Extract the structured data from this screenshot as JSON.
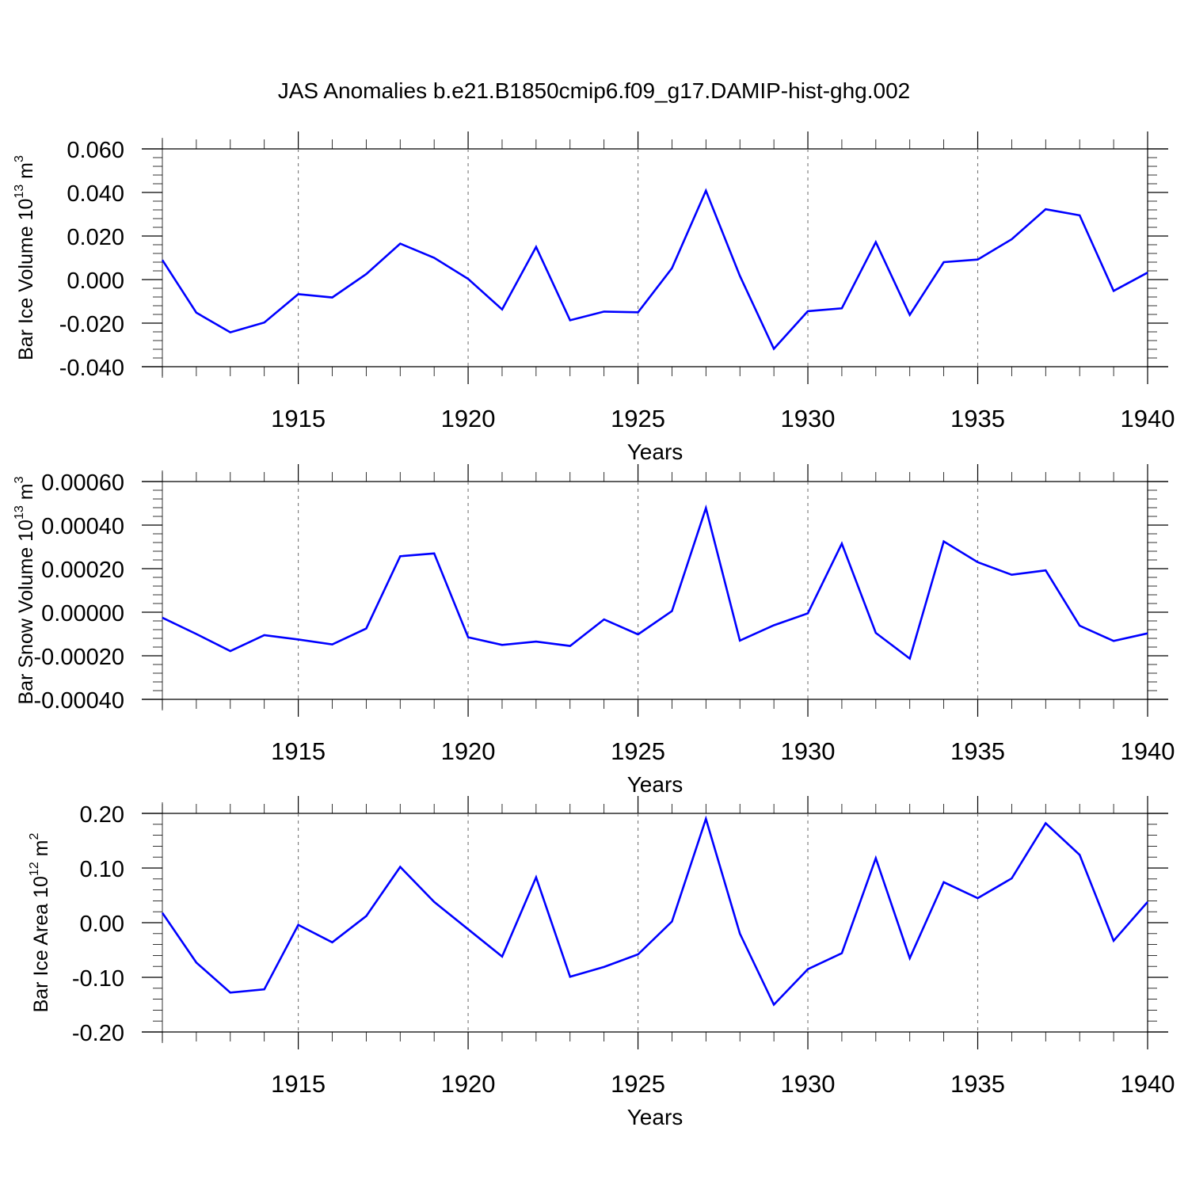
{
  "title": "JAS Anomalies b.e21.B1850cmip6.f09_g17.DAMIP-hist-ghg.002",
  "colors": {
    "line": "#0000ff",
    "grid": "#777777",
    "axis": "#000000"
  },
  "chart_data": [
    {
      "type": "line",
      "title": "",
      "xlabel": "Years",
      "ylabel": "Bar Ice Volume 10",
      "ylabel_exp": "13",
      "ylabel_unit": " m",
      "ylabel_unit_exp": "3",
      "xlim": [
        1911,
        1940
      ],
      "ylim": [
        -0.04,
        0.06
      ],
      "yticks": [
        -0.04,
        -0.02,
        0.0,
        0.02,
        0.04,
        0.06
      ],
      "ytick_labels": [
        "-0.040",
        "-0.020",
        "0.000",
        "0.020",
        "0.040",
        "0.060"
      ],
      "ytick_minor_step": 0.004,
      "xticks": [
        1915,
        1920,
        1925,
        1930,
        1935,
        1940
      ],
      "xtick_labels": [
        "1915",
        "1920",
        "1925",
        "1930",
        "1935",
        "1940"
      ],
      "grid_x": true,
      "x": [
        1911,
        1912,
        1913,
        1914,
        1915,
        1916,
        1917,
        1918,
        1919,
        1920,
        1921,
        1922,
        1923,
        1924,
        1925,
        1926,
        1927,
        1928,
        1929,
        1930,
        1931,
        1932,
        1933,
        1934,
        1935,
        1936,
        1937,
        1938,
        1939,
        1940
      ],
      "series": [
        {
          "values": [
            0.009,
            -0.0152,
            -0.0242,
            -0.0197,
            -0.0067,
            -0.0082,
            0.0025,
            0.0165,
            0.01,
            0.0003,
            -0.0137,
            0.015,
            -0.0187,
            -0.0147,
            -0.015,
            0.0052,
            0.0408,
            0.0017,
            -0.0318,
            -0.0145,
            -0.0132,
            0.0172,
            -0.0162,
            0.008,
            0.0092,
            0.0185,
            0.0323,
            0.0295,
            -0.0052,
            0.0032
          ]
        }
      ]
    },
    {
      "type": "line",
      "title": "",
      "xlabel": "Years",
      "ylabel": "Bar Snow Volume 10",
      "ylabel_exp": "13",
      "ylabel_unit": " m",
      "ylabel_unit_exp": "3",
      "xlim": [
        1911,
        1940
      ],
      "ylim": [
        -0.0004,
        0.0006
      ],
      "yticks": [
        -0.0004,
        -0.0002,
        0.0,
        0.0002,
        0.0004,
        0.0006
      ],
      "ytick_labels": [
        "-0.00040",
        "-0.00020",
        "0.00000",
        "0.00020",
        "0.00040",
        "0.00060"
      ],
      "ytick_minor_step": 4e-05,
      "xticks": [
        1915,
        1920,
        1925,
        1930,
        1935,
        1940
      ],
      "xtick_labels": [
        "1915",
        "1920",
        "1925",
        "1930",
        "1935",
        "1940"
      ],
      "grid_x": true,
      "x": [
        1911,
        1912,
        1913,
        1914,
        1915,
        1916,
        1917,
        1918,
        1919,
        1920,
        1921,
        1922,
        1923,
        1924,
        1925,
        1926,
        1927,
        1928,
        1929,
        1930,
        1931,
        1932,
        1933,
        1934,
        1935,
        1936,
        1937,
        1938,
        1939,
        1940
      ],
      "series": [
        {
          "values": [
            -2.5e-05,
            -0.0001,
            -0.000178,
            -0.000105,
            -0.000125,
            -0.000148,
            -7.5e-05,
            0.000257,
            0.00027,
            -0.000115,
            -0.00015,
            -0.000135,
            -0.000155,
            -3.3e-05,
            -0.000102,
            5e-06,
            0.000478,
            -0.00013,
            -6e-05,
            -5e-06,
            0.000315,
            -9.5e-05,
            -0.000213,
            0.000325,
            0.00023,
            0.000172,
            0.000192,
            -6.2e-05,
            -0.000132,
            -9.7e-05
          ]
        }
      ]
    },
    {
      "type": "line",
      "title": "",
      "xlabel": "Years",
      "ylabel": "Bar Ice Area 10",
      "ylabel_exp": "12",
      "ylabel_unit": " m",
      "ylabel_unit_exp": "2",
      "xlim": [
        1911,
        1940
      ],
      "ylim": [
        -0.2,
        0.2
      ],
      "yticks": [
        -0.2,
        -0.1,
        0.0,
        0.1,
        0.2
      ],
      "ytick_labels": [
        "-0.20",
        "-0.10",
        "0.00",
        "0.10",
        "0.20"
      ],
      "ytick_minor_step": 0.02,
      "xticks": [
        1915,
        1920,
        1925,
        1930,
        1935,
        1940
      ],
      "xtick_labels": [
        "1915",
        "1920",
        "1925",
        "1930",
        "1935",
        "1940"
      ],
      "grid_x": true,
      "x": [
        1911,
        1912,
        1913,
        1914,
        1915,
        1916,
        1917,
        1918,
        1919,
        1920,
        1921,
        1922,
        1923,
        1924,
        1925,
        1926,
        1927,
        1928,
        1929,
        1930,
        1931,
        1932,
        1933,
        1934,
        1935,
        1936,
        1937,
        1938,
        1939,
        1940
      ],
      "series": [
        {
          "values": [
            0.018,
            -0.073,
            -0.128,
            -0.122,
            -0.004,
            -0.036,
            0.012,
            0.102,
            0.038,
            -0.012,
            -0.062,
            0.083,
            -0.099,
            -0.081,
            -0.058,
            0.002,
            0.19,
            -0.02,
            -0.15,
            -0.085,
            -0.056,
            0.118,
            -0.065,
            0.074,
            0.045,
            0.081,
            0.182,
            0.124,
            -0.033,
            0.038
          ]
        }
      ]
    }
  ]
}
